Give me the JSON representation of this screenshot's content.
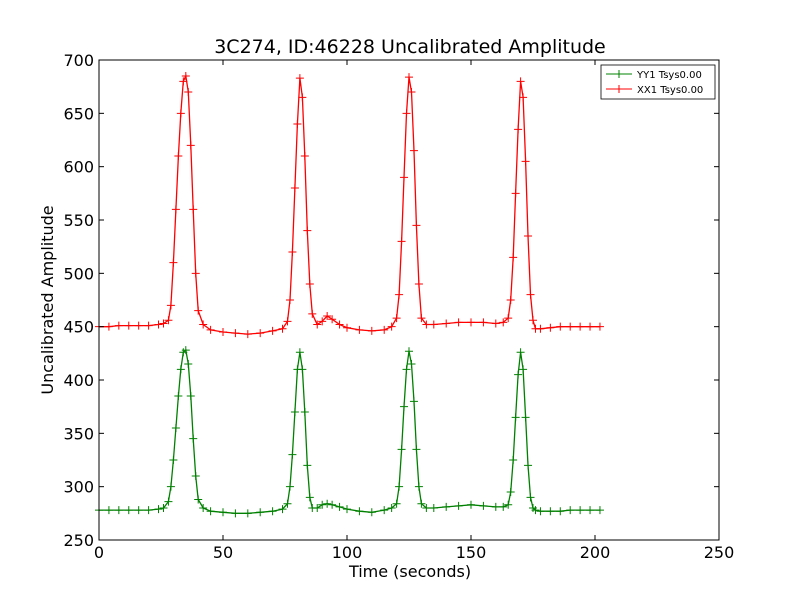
{
  "chart_data": {
    "type": "line",
    "title": "3C274, ID:46228 Uncalibrated Amplitude",
    "xlabel": "Time (seconds)",
    "ylabel": "Uncalibrated Amplitude",
    "xlim": [
      0,
      250
    ],
    "ylim": [
      250,
      700
    ],
    "xticks": [
      "0",
      "50",
      "100",
      "150",
      "200",
      "250"
    ],
    "yticks": [
      "250",
      "300",
      "350",
      "400",
      "450",
      "500",
      "550",
      "600",
      "650",
      "700"
    ],
    "grid": false,
    "legend_position": "top-right",
    "series": [
      {
        "name": "YY1 Tsys0.00",
        "color": "#008000",
        "marker": "+",
        "x": [
          0,
          4,
          8,
          12,
          16,
          20,
          24,
          26,
          28,
          29,
          30,
          31,
          32,
          33,
          34,
          35,
          36,
          37,
          38,
          39,
          40,
          42,
          45,
          50,
          55,
          60,
          65,
          70,
          74,
          76,
          77,
          78,
          79,
          80,
          81,
          82,
          83,
          84,
          85,
          86,
          88,
          90,
          92,
          94,
          97,
          100,
          105,
          110,
          115,
          118,
          120,
          121,
          122,
          123,
          124,
          125,
          126,
          127,
          128,
          129,
          130,
          132,
          135,
          140,
          145,
          150,
          155,
          160,
          163,
          165,
          166,
          167,
          168,
          169,
          170,
          171,
          172,
          173,
          174,
          175,
          176,
          178,
          182,
          186,
          190,
          194,
          198,
          202
        ],
        "values": [
          278,
          278,
          278,
          278,
          278,
          278,
          279,
          280,
          286,
          300,
          325,
          355,
          385,
          410,
          426,
          428,
          415,
          385,
          345,
          310,
          288,
          280,
          277,
          276,
          275,
          275,
          276,
          277,
          279,
          284,
          300,
          330,
          370,
          410,
          426,
          410,
          370,
          320,
          290,
          280,
          280,
          283,
          284,
          283,
          281,
          279,
          277,
          276,
          278,
          280,
          284,
          300,
          335,
          375,
          410,
          427,
          415,
          380,
          335,
          300,
          284,
          280,
          280,
          281,
          282,
          283,
          282,
          281,
          281,
          283,
          295,
          325,
          365,
          405,
          426,
          410,
          365,
          320,
          290,
          280,
          278,
          277,
          277,
          277,
          278,
          278,
          278,
          278
        ]
      },
      {
        "name": "XX1 Tsys0.00",
        "color": "#ff0000",
        "marker": "+",
        "x": [
          0,
          4,
          8,
          12,
          16,
          20,
          24,
          26,
          28,
          29,
          30,
          31,
          32,
          33,
          34,
          35,
          36,
          37,
          38,
          39,
          40,
          42,
          45,
          50,
          55,
          60,
          65,
          70,
          74,
          76,
          77,
          78,
          79,
          80,
          81,
          82,
          83,
          84,
          85,
          86,
          88,
          90,
          92,
          94,
          97,
          100,
          105,
          110,
          115,
          118,
          120,
          121,
          122,
          123,
          124,
          125,
          126,
          127,
          128,
          129,
          130,
          132,
          135,
          140,
          145,
          150,
          155,
          160,
          163,
          165,
          166,
          167,
          168,
          169,
          170,
          171,
          172,
          173,
          174,
          175,
          176,
          178,
          182,
          186,
          190,
          194,
          198,
          202
        ],
        "values": [
          450,
          450,
          451,
          451,
          451,
          451,
          452,
          453,
          456,
          470,
          510,
          560,
          610,
          650,
          680,
          685,
          670,
          620,
          560,
          500,
          465,
          452,
          447,
          445,
          444,
          443,
          444,
          446,
          448,
          455,
          475,
          520,
          580,
          640,
          683,
          665,
          610,
          540,
          490,
          462,
          452,
          455,
          460,
          457,
          452,
          449,
          447,
          446,
          447,
          450,
          458,
          480,
          530,
          590,
          650,
          684,
          670,
          615,
          545,
          490,
          458,
          452,
          452,
          453,
          454,
          454,
          454,
          453,
          454,
          458,
          475,
          515,
          575,
          635,
          680,
          665,
          605,
          535,
          480,
          456,
          448,
          448,
          449,
          450,
          450,
          450,
          450,
          450
        ]
      }
    ]
  }
}
